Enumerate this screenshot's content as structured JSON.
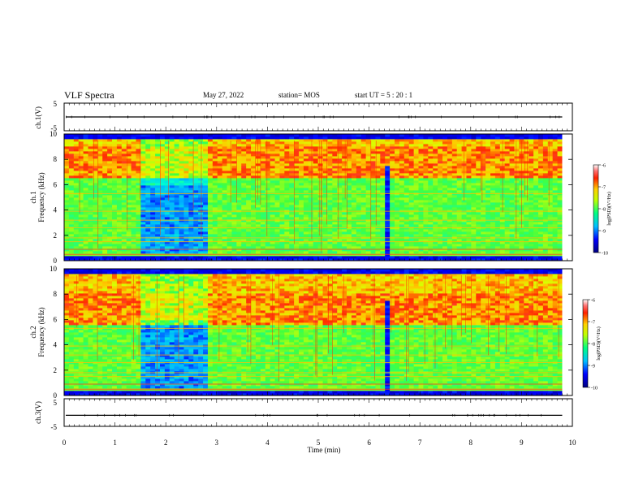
{
  "header": {
    "title": "VLF Spectra",
    "date": "May 27, 2022",
    "station": "station= MOS",
    "start_ut": "start  UT =   5  : 20 : 1"
  },
  "chart_data": {
    "type": "heatmap",
    "title": "VLF Spectra",
    "x_label": "Time  (min)",
    "x_range": [
      0,
      10
    ],
    "x_ticks": [
      "0",
      "1",
      "2",
      "3",
      "4",
      "5",
      "6",
      "7",
      "8",
      "9",
      "10"
    ],
    "panels": [
      {
        "id": "ch1-waveform",
        "type": "line",
        "ylabel": "ch.1(V)",
        "y_range": [
          -5,
          5
        ],
        "y_ticks": [
          "5",
          "-5"
        ],
        "level_v": 0,
        "data_end_min": 9.8
      },
      {
        "id": "ch1-spectrogram",
        "type": "heatmap",
        "ylabel_line1": "ch.1",
        "ylabel_line2": "Frequency  (kHz)",
        "y_range_khz": [
          0,
          10
        ],
        "y_ticks": [
          "0",
          "2",
          "4",
          "6",
          "8",
          "10"
        ],
        "colorbar_label": "log(PSD)(V²/Hz)",
        "colorbar_range": [
          -10,
          -6
        ],
        "colorbar_ticks": [
          "-6",
          "-7",
          "-8",
          "-9",
          "-10"
        ],
        "data_end_min": 9.8,
        "quiet_interval_min": [
          1.55,
          2.85
        ],
        "dropout_min": 6.37,
        "intense_band_khz": [
          6.5,
          9
        ]
      },
      {
        "id": "ch2-spectrogram",
        "type": "heatmap",
        "ylabel_line1": "ch.2",
        "ylabel_line2": "Frequency  (kHz)",
        "y_range_khz": [
          0,
          10
        ],
        "y_ticks": [
          "0",
          "2",
          "4",
          "6",
          "8",
          "10"
        ],
        "colorbar_label": "log(PSD)(V²/Hz)",
        "colorbar_range": [
          -10,
          -6
        ],
        "colorbar_ticks": [
          "-6",
          "-7",
          "-8",
          "-9",
          "-10"
        ],
        "data_end_min": 9.8,
        "quiet_interval_min": [
          1.55,
          2.85
        ],
        "dropout_min": 6.37,
        "intense_band_khz": [
          5.5,
          8
        ]
      },
      {
        "id": "ch3-waveform",
        "type": "line",
        "ylabel": "ch.3(V)",
        "y_range": [
          -5,
          5
        ],
        "y_ticks": [
          "5",
          "-5"
        ],
        "level_v": -1,
        "data_end_min": 9.8
      }
    ],
    "colormap": [
      "#00007a",
      "#0000ff",
      "#00b4ff",
      "#00ffd0",
      "#40ff40",
      "#d8ff00",
      "#ffc800",
      "#ff3000",
      "#ff5a5a",
      "#ffffff"
    ]
  }
}
